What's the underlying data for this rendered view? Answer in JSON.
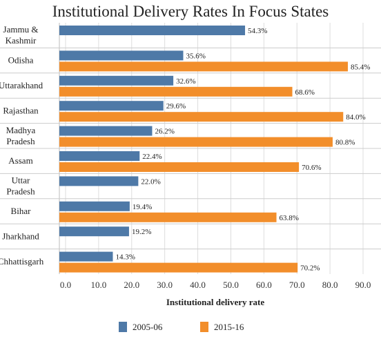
{
  "chart_data": {
    "type": "bar",
    "orientation": "horizontal",
    "title": "Institutional Delivery Rates In Focus States",
    "xlabel": "Institutional delivery rate",
    "ylabel": "",
    "xlim": [
      0,
      90
    ],
    "x_ticks": [
      "0.0",
      "10.0",
      "20.0",
      "30.0",
      "40.0",
      "50.0",
      "60.0",
      "70.0",
      "80.0",
      "90.0"
    ],
    "categories": [
      [
        "Jammu &",
        "Kashmir"
      ],
      [
        "Odisha"
      ],
      [
        "Uttarakhand"
      ],
      [
        "Rajasthan"
      ],
      [
        "Madhya",
        "Pradesh"
      ],
      [
        "Assam"
      ],
      [
        "Uttar",
        "Pradesh"
      ],
      [
        "Bihar"
      ],
      [
        "Jharkhand"
      ],
      [
        "Chhattisgarh"
      ]
    ],
    "series": [
      {
        "name": "2005-06",
        "color": "#4e79a7",
        "values": [
          54.3,
          35.6,
          32.6,
          29.6,
          26.2,
          22.4,
          22.0,
          19.4,
          19.2,
          14.3
        ],
        "labels": [
          "54.3%",
          "35.6%",
          "32.6%",
          "29.6%",
          "26.2%",
          "22.4%",
          "22.0%",
          "19.4%",
          "19.2%",
          "14.3%"
        ]
      },
      {
        "name": "2015-16",
        "color": "#f28e2b",
        "values": [
          null,
          85.4,
          68.6,
          84.0,
          80.8,
          70.6,
          null,
          63.8,
          null,
          70.2
        ],
        "labels": [
          "",
          "85.4%",
          "68.6%",
          "84.0%",
          "80.8%",
          "70.6%",
          "",
          "63.8%",
          "",
          "70.2%"
        ]
      }
    ],
    "grid": true,
    "legend_position": "bottom"
  }
}
